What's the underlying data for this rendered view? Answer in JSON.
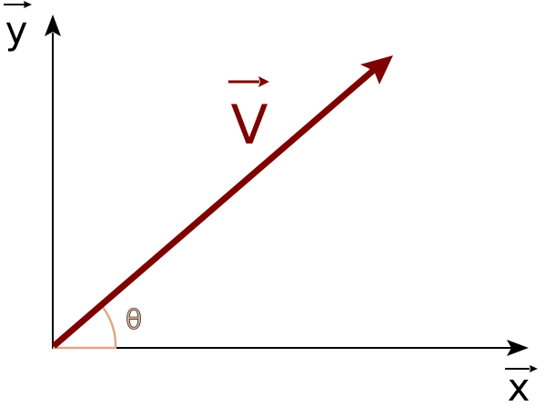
{
  "labels": {
    "y_axis": "y",
    "x_axis": "x",
    "vector": "V",
    "angle": "θ"
  },
  "colors": {
    "vector": "#7f0000",
    "angle_arc": "#e0a887",
    "angle_label": "#d4a98c",
    "axes": "#000000"
  }
}
